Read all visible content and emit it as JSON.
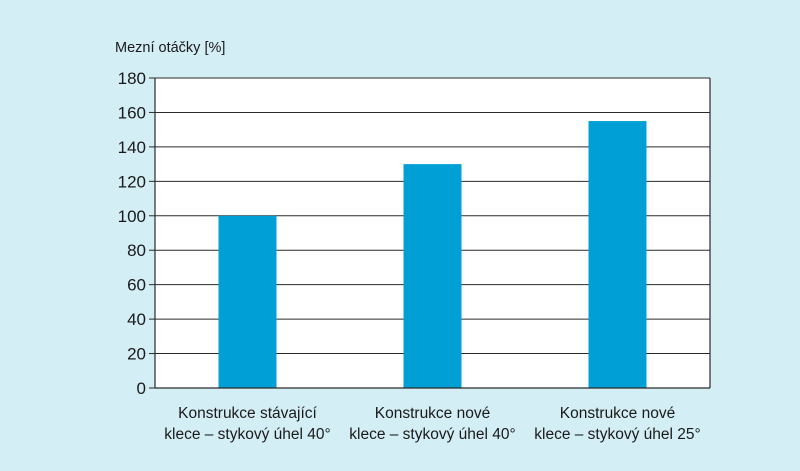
{
  "chart_data": {
    "type": "bar",
    "title": "",
    "ylabel": "Mezní otáčky [%]",
    "xlabel": "",
    "ylim": [
      0,
      180
    ],
    "yticks": [
      0,
      20,
      40,
      60,
      80,
      100,
      120,
      140,
      160,
      180
    ],
    "grid": true,
    "legend": "none",
    "categories": [
      [
        "Konstrukce stávající",
        "klece – stykový úhel 40°"
      ],
      [
        "Konstrukce nové",
        "klece – stykový úhel 40°"
      ],
      [
        "Konstrukce nové",
        "klece – stykový úhel 25°"
      ]
    ],
    "values": [
      100,
      130,
      155
    ],
    "colors": {
      "bar": "#00a0d6",
      "background": "#d4eef6",
      "plot_background": "#ffffff",
      "grid": "#2a2a2a"
    }
  }
}
